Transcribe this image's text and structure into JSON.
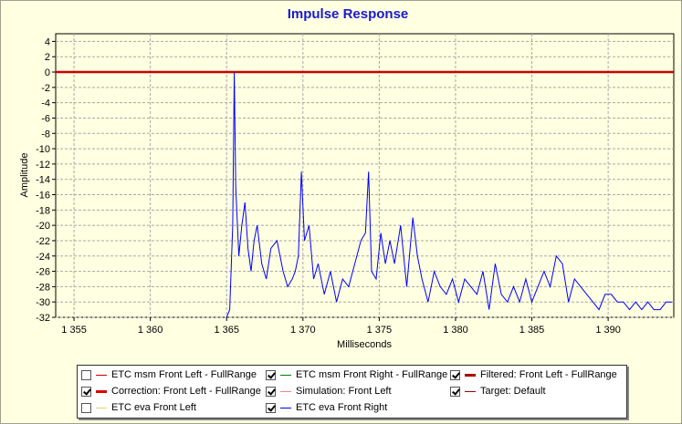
{
  "chart_data": {
    "type": "line",
    "title": "Impulse Response",
    "xlabel": "Milliseconds",
    "ylabel": "Amplitude",
    "xlim": [
      1353.8,
      1394.3
    ],
    "ylim": [
      -32,
      5
    ],
    "x_ticks": [
      1355,
      1360,
      1365,
      1370,
      1375,
      1380,
      1385,
      1390
    ],
    "x_tick_labels": [
      "1 355",
      "1 360",
      "1 365",
      "1 370",
      "1 375",
      "1 380",
      "1 385",
      "1 390"
    ],
    "y_ticks": [
      4,
      2,
      0,
      -2,
      -4,
      -6,
      -8,
      -10,
      -12,
      -14,
      -16,
      -18,
      -20,
      -22,
      -24,
      -26,
      -28,
      -30,
      -32
    ],
    "grid": true,
    "series": [
      {
        "name": "Correction: Front Left - FullRange",
        "color": "#cc0000",
        "x": [
          1353.8,
          1394.3
        ],
        "y": [
          0,
          0
        ]
      },
      {
        "name": "ETC eva Front Right",
        "color": "#0000ff",
        "x": [
          1365.0,
          1365.2,
          1365.4,
          1365.5,
          1365.6,
          1365.8,
          1366.0,
          1366.2,
          1366.4,
          1366.6,
          1366.8,
          1367.0,
          1367.3,
          1367.6,
          1367.9,
          1368.3,
          1368.7,
          1369.0,
          1369.3,
          1369.5,
          1369.7,
          1369.9,
          1370.1,
          1370.4,
          1370.7,
          1371.0,
          1371.4,
          1371.8,
          1372.2,
          1372.6,
          1373.0,
          1373.4,
          1373.8,
          1374.1,
          1374.3,
          1374.5,
          1374.8,
          1375.1,
          1375.4,
          1375.7,
          1376.0,
          1376.4,
          1376.8,
          1377.2,
          1377.5,
          1377.8,
          1378.2,
          1378.6,
          1379.0,
          1379.4,
          1379.8,
          1380.2,
          1380.6,
          1381.0,
          1381.4,
          1381.8,
          1382.2,
          1382.6,
          1383.0,
          1383.4,
          1383.8,
          1384.2,
          1384.6,
          1385.0,
          1385.4,
          1385.8,
          1386.2,
          1386.6,
          1387.0,
          1387.4,
          1387.8,
          1388.2,
          1388.6,
          1389.0,
          1389.4,
          1389.8,
          1390.2,
          1390.6,
          1391.0,
          1391.4,
          1391.8,
          1392.2,
          1392.6,
          1393.0,
          1393.4,
          1393.8,
          1394.2
        ],
        "y": [
          -32,
          -31,
          -20,
          0,
          -15,
          -24,
          -20,
          -17,
          -23,
          -26,
          -22,
          -20,
          -25,
          -27,
          -23,
          -22,
          -26,
          -28,
          -27,
          -26,
          -24,
          -13,
          -22,
          -20,
          -27,
          -25,
          -29,
          -26,
          -30,
          -27,
          -28,
          -25,
          -22,
          -21,
          -13,
          -26,
          -27,
          -21,
          -25,
          -22,
          -25,
          -20,
          -28,
          -19,
          -24,
          -27,
          -30,
          -26,
          -28,
          -29,
          -27,
          -30,
          -27,
          -28,
          -29,
          -26,
          -31,
          -25,
          -29,
          -30,
          -28,
          -30,
          -27,
          -30,
          -28,
          -26,
          -28,
          -24,
          -25,
          -30,
          -27,
          -28,
          -29,
          -30,
          -31,
          -29,
          -29,
          -30,
          -30,
          -31,
          -30,
          -31,
          -30,
          -31,
          -31,
          -30,
          -30
        ]
      }
    ]
  },
  "legend": {
    "items": [
      {
        "label": "ETC msm Front Left - FullRange",
        "checked": false,
        "color": "#cc0000",
        "weight": 1
      },
      {
        "label": "ETC msm Front Right - FullRange",
        "checked": true,
        "color": "#008000",
        "weight": 1
      },
      {
        "label": "Filtered: Front Left - FullRange",
        "checked": true,
        "color": "#aa0000",
        "weight": 3
      },
      {
        "label": "Correction: Front Left - FullRange",
        "checked": true,
        "color": "#dd0000",
        "weight": 3
      },
      {
        "label": "Simulation: Front Left",
        "checked": true,
        "color": "#ff8080",
        "weight": 1
      },
      {
        "label": "Target: Default",
        "checked": true,
        "color": "#990000",
        "weight": 1
      },
      {
        "label": "ETC eva Front Left",
        "checked": false,
        "color": "#e8d080",
        "weight": 1
      },
      {
        "label": "ETC eva Front Right",
        "checked": true,
        "color": "#0000ff",
        "weight": 1
      }
    ]
  }
}
